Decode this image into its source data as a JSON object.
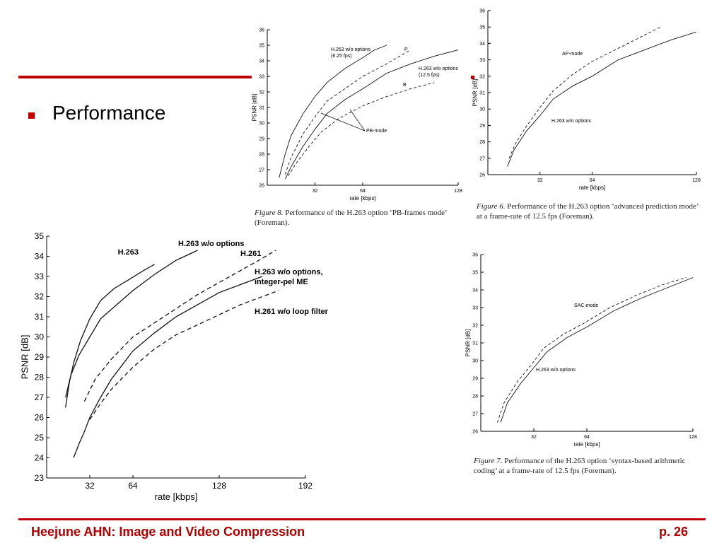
{
  "slide": {
    "bullet_text": "Performance",
    "footer_left": "Heejune AHN: Image and Video Compression",
    "footer_right": "p. 26",
    "accent_color": "#c00000"
  },
  "chart_data": [
    {
      "id": "main",
      "type": "line",
      "xlabel": "rate [kbps]",
      "ylabel": "PSNR [dB]",
      "xlim": [
        0,
        192
      ],
      "ylim": [
        23,
        35
      ],
      "xticks": [
        32,
        64,
        128,
        192
      ],
      "yticks": [
        23,
        24,
        25,
        26,
        27,
        28,
        29,
        30,
        31,
        32,
        33,
        34,
        35
      ],
      "series": [
        {
          "name": "H.263",
          "style": "solid",
          "x": [
            14,
            17,
            20,
            25,
            32,
            40,
            50,
            60,
            72,
            80
          ],
          "y": [
            26.5,
            27.8,
            28.7,
            29.8,
            30.9,
            31.8,
            32.4,
            32.8,
            33.3,
            33.6
          ]
        },
        {
          "name": "H.263 w/o options",
          "style": "solid",
          "x": [
            14,
            18,
            24,
            32,
            40,
            52,
            64,
            80,
            96,
            112
          ],
          "y": [
            27.0,
            28.1,
            29.1,
            30.0,
            30.9,
            31.6,
            32.3,
            33.1,
            33.8,
            34.3
          ]
        },
        {
          "name": "H.261",
          "style": "dashed",
          "x": [
            28,
            36,
            48,
            64,
            80,
            96,
            112,
            128,
            144,
            160,
            170
          ],
          "y": [
            26.8,
            27.9,
            28.9,
            30.0,
            30.7,
            31.4,
            32.1,
            32.7,
            33.3,
            33.9,
            34.3
          ]
        },
        {
          "name": "H.263 w/o options, integer-pel ME",
          "style": "solid",
          "x": [
            20,
            24,
            28,
            32,
            40,
            48,
            64,
            80,
            96,
            112,
            128,
            144,
            160
          ],
          "y": [
            24.0,
            24.7,
            25.3,
            26.0,
            27.0,
            27.9,
            29.3,
            30.2,
            31.0,
            31.6,
            32.2,
            32.6,
            33.0
          ]
        },
        {
          "name": "H.261 w/o loop filter",
          "style": "dashed",
          "x": [
            32,
            40,
            48,
            64,
            80,
            96,
            112,
            128,
            144,
            160,
            172
          ],
          "y": [
            25.9,
            26.7,
            27.4,
            28.5,
            29.4,
            30.1,
            30.6,
            31.1,
            31.6,
            32.0,
            32.3
          ]
        }
      ],
      "labels": [
        "H.263",
        "H.263 w/o options",
        "H.261",
        "H.263 w/o options,",
        "integer-pel ME",
        "H.261 w/o loop filter"
      ]
    },
    {
      "id": "pb",
      "type": "line",
      "xlabel": "rate [kbps]",
      "ylabel": "PSNR [dB]",
      "xlim": [
        0,
        128
      ],
      "ylim": [
        26,
        36
      ],
      "xticks": [
        32,
        64,
        128
      ],
      "yticks": [
        26,
        27,
        28,
        29,
        30,
        31,
        32,
        33,
        34,
        35,
        36
      ],
      "series": [
        {
          "name": "H.263 w/o options (6.25 fps)",
          "style": "solid",
          "x": [
            8,
            12,
            16,
            24,
            32,
            40,
            52,
            64,
            72,
            80
          ],
          "y": [
            26.5,
            28.0,
            29.2,
            30.6,
            31.7,
            32.6,
            33.5,
            34.2,
            34.7,
            35.0
          ]
        },
        {
          "name": "P",
          "style": "dashed",
          "x": [
            12,
            16,
            24,
            32,
            40,
            52,
            64,
            80,
            96
          ],
          "y": [
            26.7,
            27.8,
            29.3,
            30.4,
            31.4,
            32.2,
            33.0,
            33.8,
            34.7
          ]
        },
        {
          "name": "H.263 w/o options (12.5 fps)",
          "style": "solid",
          "x": [
            12,
            16,
            24,
            32,
            40,
            52,
            64,
            80,
            96,
            112,
            128
          ],
          "y": [
            26.4,
            27.2,
            28.5,
            29.6,
            30.6,
            31.5,
            32.2,
            33.2,
            33.8,
            34.3,
            34.7
          ]
        },
        {
          "name": "B",
          "style": "dashed",
          "x": [
            14,
            20,
            28,
            36,
            48,
            64,
            80,
            96,
            112
          ],
          "y": [
            26.6,
            27.5,
            28.5,
            29.4,
            30.3,
            31.1,
            31.7,
            32.2,
            32.6
          ]
        }
      ],
      "labels": [
        "H.263 w/o options",
        "(6.25 fps)",
        "P",
        "H.263 w/o options",
        "(12.5 fps)",
        "B",
        "PB-mode"
      ],
      "caption_prefix": "Figure 8.",
      "caption": "Performance of the H.263 option ‘PB-frames mode’ (Foreman)."
    },
    {
      "id": "ap",
      "type": "line",
      "xlabel": "rate [kbps]",
      "ylabel": "PSNR [dB]",
      "xlim": [
        0,
        128
      ],
      "ylim": [
        26,
        36
      ],
      "xticks": [
        32,
        64,
        128
      ],
      "yticks": [
        26,
        27,
        28,
        29,
        30,
        31,
        32,
        33,
        34,
        35,
        36
      ],
      "series": [
        {
          "name": "H.263 w/o options",
          "style": "solid",
          "x": [
            12,
            16,
            24,
            32,
            40,
            52,
            64,
            80,
            96,
            112,
            128
          ],
          "y": [
            26.5,
            27.5,
            28.7,
            29.6,
            30.6,
            31.4,
            32.0,
            33.0,
            33.6,
            34.2,
            34.7
          ]
        },
        {
          "name": "AP-mode",
          "style": "dashed",
          "x": [
            13,
            17,
            24,
            32,
            40,
            52,
            64,
            80,
            96,
            106
          ],
          "y": [
            27.0,
            27.9,
            29.0,
            30.1,
            31.1,
            32.1,
            32.9,
            33.7,
            34.5,
            35.0
          ]
        }
      ],
      "labels": [
        "AP-mode",
        "H.263 w/o options"
      ],
      "caption_prefix": "Figure 6.",
      "caption": "Performance of the H.263 option ‘advanced prediction mode’ at a frame-rate of 12.5 fps (Foreman)."
    },
    {
      "id": "sac",
      "type": "line",
      "xlabel": "rate [kbps]",
      "ylabel": "PSNR [dB]",
      "xlim": [
        0,
        128
      ],
      "ylim": [
        26,
        36
      ],
      "xticks": [
        32,
        64,
        128
      ],
      "yticks": [
        26,
        27,
        28,
        29,
        30,
        31,
        32,
        33,
        34,
        35,
        36
      ],
      "series": [
        {
          "name": "H.263 w/o options",
          "style": "solid",
          "x": [
            12,
            16,
            24,
            32,
            40,
            52,
            64,
            80,
            96,
            112,
            128
          ],
          "y": [
            26.5,
            27.6,
            28.7,
            29.6,
            30.5,
            31.3,
            31.9,
            32.8,
            33.5,
            34.1,
            34.7
          ]
        },
        {
          "name": "SAC-mode",
          "style": "dashed",
          "x": [
            10,
            14,
            22,
            30,
            38,
            50,
            62,
            78,
            94,
            110,
            124
          ],
          "y": [
            26.5,
            27.6,
            28.8,
            29.7,
            30.7,
            31.5,
            32.1,
            33.0,
            33.7,
            34.3,
            34.7
          ]
        }
      ],
      "labels": [
        "SAC-mode",
        "H.263 w/o options"
      ],
      "caption_prefix": "Figure 7.",
      "caption": "Performance of the H.263 option ‘syntax-based arithmetic coding’ at a frame-rate of 12.5 fps (Foreman)."
    }
  ]
}
